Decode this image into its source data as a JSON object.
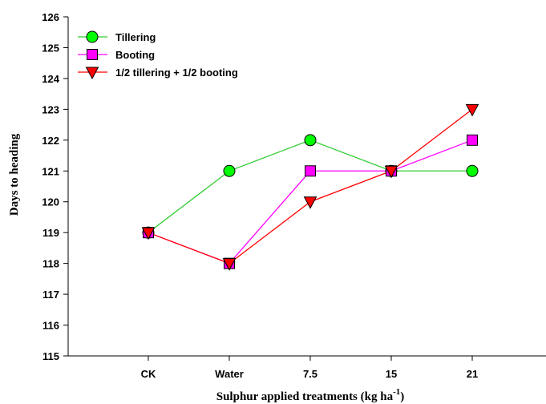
{
  "chart_data": {
    "type": "line",
    "categories": [
      "CK",
      "Water",
      "7.5",
      "15",
      "21"
    ],
    "ylim": [
      115,
      126
    ],
    "yticks": [
      115,
      116,
      117,
      118,
      119,
      120,
      121,
      122,
      123,
      124,
      125,
      126
    ],
    "xlabel": "Sulphur applied treatments (kg ha",
    "xlabel_superscript": "-1",
    "xlabel_suffix": ")",
    "ylabel": "Days to heading",
    "grid": false,
    "legend_position": "top-left",
    "series": [
      {
        "name": "Tillering",
        "values": [
          119,
          121,
          122,
          121,
          121
        ],
        "color": "#00ff00",
        "line_color": "#33cc33",
        "marker": "circle"
      },
      {
        "name": "Booting",
        "values": [
          119,
          118,
          121,
          121,
          122
        ],
        "color": "#ff00ff",
        "line_color": "#ff00ff",
        "marker": "square"
      },
      {
        "name": "1/2 tillering + 1/2 booting",
        "values": [
          119,
          118,
          120,
          121,
          123
        ],
        "color": "#ff0000",
        "line_color": "#ff0000",
        "marker": "triangle-down"
      }
    ]
  }
}
